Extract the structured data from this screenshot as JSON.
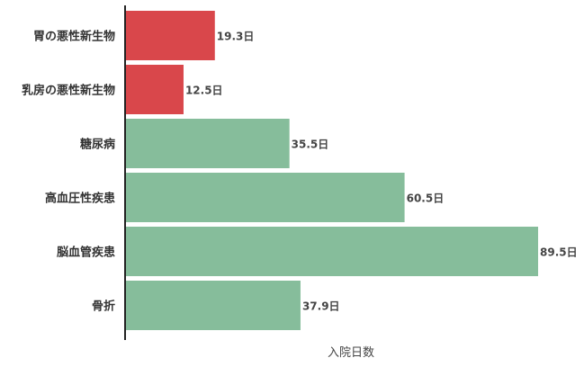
{
  "chart_data": {
    "type": "bar",
    "orientation": "horizontal",
    "categories": [
      "胃の悪性新生物",
      "乳房の悪性新生物",
      "糖尿病",
      "高血圧性疾患",
      "脳血管疾患",
      "骨折"
    ],
    "values": [
      19.3,
      12.5,
      35.5,
      60.5,
      89.5,
      37.9
    ],
    "value_labels": [
      "19.3日",
      "12.5日",
      "35.5日",
      "60.5日",
      "89.5日",
      "37.9日"
    ],
    "colors": [
      "#d9474b",
      "#d9474b",
      "#86bd9b",
      "#86bd9b",
      "#86bd9b",
      "#86bd9b"
    ],
    "xlabel": "入院日数",
    "ylabel": "",
    "title": "",
    "xlim": [
      0,
      89.5
    ],
    "grid": false,
    "legend": false
  }
}
